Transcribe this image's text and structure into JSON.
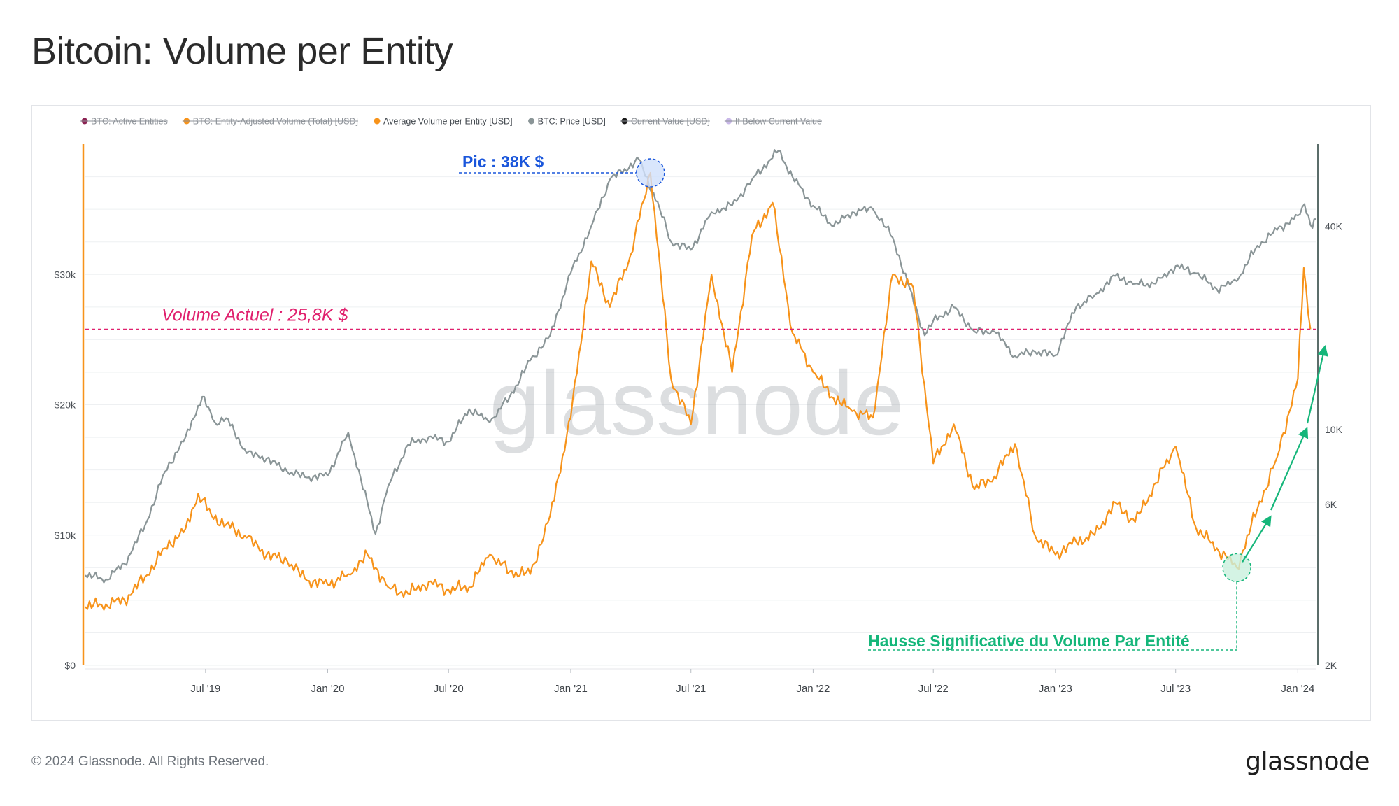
{
  "page": {
    "title": "Bitcoin: Volume per Entity",
    "footer_copyright": "© 2024 Glassnode. All Rights Reserved.",
    "footer_logo": "glassnode",
    "watermark": "glassnode"
  },
  "chart_data": {
    "type": "line",
    "title": "Bitcoin: Volume per Entity",
    "legend_placement": "top-left",
    "legend": [
      {
        "label": "BTC: Active Entities",
        "color": "#8b2252",
        "disabled": true,
        "marker": "dot"
      },
      {
        "label": "BTC: Entity-Adjusted Volume (Total) [USD]",
        "color": "#f7931a",
        "disabled": true,
        "marker": "dot"
      },
      {
        "label": "Average Volume per Entity [USD]",
        "color": "#f7931a",
        "disabled": false,
        "marker": "dot"
      },
      {
        "label": "BTC: Price [USD]",
        "color": "#8a9597",
        "disabled": false,
        "marker": "dot"
      },
      {
        "label": "Current Value [USD]",
        "color": "#1a1a1a",
        "disabled": true,
        "marker": "dot"
      },
      {
        "label": "If Below Current Value",
        "color": "#c9b8e8",
        "disabled": true,
        "marker": "dot"
      }
    ],
    "x_ticks": [
      "Jul '19",
      "Jan '20",
      "Jul '20",
      "Jan '21",
      "Jul '21",
      "Jan '22",
      "Jul '22",
      "Jan '23",
      "Jul '23",
      "Jan '24"
    ],
    "x_range": [
      "2019-01-01",
      "2024-01-28"
    ],
    "y_left": {
      "ticks": [
        "$0",
        "$10k",
        "$20k",
        "$30k"
      ],
      "tick_values": [
        0,
        10000,
        20000,
        30000
      ],
      "range": [
        0,
        40000
      ],
      "scale": "linear"
    },
    "y_right": {
      "ticks": [
        "2K",
        "6K",
        "10K",
        "40K"
      ],
      "tick_values": [
        2000,
        6000,
        10000,
        40000
      ],
      "range": [
        2000,
        70000
      ],
      "scale": "log"
    },
    "grid": true,
    "series": [
      {
        "name": "Average Volume per Entity [USD]",
        "axis": "left",
        "color": "#f7931a",
        "points": [
          [
            "2019-01-01",
            4500
          ],
          [
            "2019-02-01",
            4700
          ],
          [
            "2019-03-01",
            5000
          ],
          [
            "2019-04-01",
            6800
          ],
          [
            "2019-05-01",
            9000
          ],
          [
            "2019-06-01",
            10500
          ],
          [
            "2019-06-20",
            13200
          ],
          [
            "2019-07-10",
            11500
          ],
          [
            "2019-08-01",
            10800
          ],
          [
            "2019-09-01",
            9800
          ],
          [
            "2019-10-01",
            8500
          ],
          [
            "2019-11-01",
            8000
          ],
          [
            "2019-12-01",
            6500
          ],
          [
            "2020-01-01",
            6200
          ],
          [
            "2020-02-01",
            7000
          ],
          [
            "2020-03-01",
            8500
          ],
          [
            "2020-04-01",
            6000
          ],
          [
            "2020-05-01",
            5500
          ],
          [
            "2020-06-01",
            6400
          ],
          [
            "2020-07-01",
            5800
          ],
          [
            "2020-08-01",
            6000
          ],
          [
            "2020-09-01",
            8500
          ],
          [
            "2020-10-01",
            7200
          ],
          [
            "2020-11-01",
            7000
          ],
          [
            "2020-12-01",
            11500
          ],
          [
            "2021-01-01",
            19000
          ],
          [
            "2021-02-01",
            31000
          ],
          [
            "2021-03-01",
            27500
          ],
          [
            "2021-04-01",
            31500
          ],
          [
            "2021-05-01",
            37800
          ],
          [
            "2021-06-01",
            22000
          ],
          [
            "2021-07-01",
            18500
          ],
          [
            "2021-08-01",
            30000
          ],
          [
            "2021-09-01",
            22500
          ],
          [
            "2021-10-01",
            33000
          ],
          [
            "2021-11-01",
            35500
          ],
          [
            "2021-12-01",
            25500
          ],
          [
            "2022-01-01",
            22500
          ],
          [
            "2022-02-01",
            20500
          ],
          [
            "2022-03-01",
            19500
          ],
          [
            "2022-04-01",
            19000
          ],
          [
            "2022-05-01",
            30000
          ],
          [
            "2022-06-01",
            29000
          ],
          [
            "2022-07-01",
            15500
          ],
          [
            "2022-08-01",
            18500
          ],
          [
            "2022-09-01",
            13500
          ],
          [
            "2022-10-01",
            14500
          ],
          [
            "2022-11-01",
            17000
          ],
          [
            "2022-12-01",
            10000
          ],
          [
            "2023-01-01",
            8500
          ],
          [
            "2023-02-01",
            9500
          ],
          [
            "2023-03-01",
            10000
          ],
          [
            "2023-04-01",
            12500
          ],
          [
            "2023-05-01",
            11000
          ],
          [
            "2023-06-01",
            14000
          ],
          [
            "2023-07-01",
            16800
          ],
          [
            "2023-08-01",
            10500
          ],
          [
            "2023-09-01",
            9000
          ],
          [
            "2023-10-01",
            7500
          ],
          [
            "2023-11-01",
            12000
          ],
          [
            "2023-12-01",
            16000
          ],
          [
            "2024-01-01",
            22000
          ],
          [
            "2024-01-10",
            30500
          ],
          [
            "2024-01-20",
            25800
          ]
        ]
      },
      {
        "name": "BTC: Price [USD]",
        "axis": "right",
        "color": "#8a9597",
        "points": [
          [
            "2019-01-01",
            3700
          ],
          [
            "2019-02-01",
            3600
          ],
          [
            "2019-03-01",
            4000
          ],
          [
            "2019-04-01",
            5200
          ],
          [
            "2019-05-01",
            7500
          ],
          [
            "2019-06-01",
            9500
          ],
          [
            "2019-06-26",
            12500
          ],
          [
            "2019-07-15",
            10500
          ],
          [
            "2019-08-01",
            10800
          ],
          [
            "2019-09-01",
            8500
          ],
          [
            "2019-10-01",
            8200
          ],
          [
            "2019-11-01",
            7500
          ],
          [
            "2019-12-01",
            7200
          ],
          [
            "2020-01-01",
            7300
          ],
          [
            "2020-02-01",
            9800
          ],
          [
            "2020-03-13",
            4900
          ],
          [
            "2020-04-01",
            6800
          ],
          [
            "2020-05-01",
            9000
          ],
          [
            "2020-06-01",
            9500
          ],
          [
            "2020-07-01",
            9200
          ],
          [
            "2020-08-01",
            11500
          ],
          [
            "2020-09-01",
            10500
          ],
          [
            "2020-10-01",
            12500
          ],
          [
            "2020-11-01",
            16000
          ],
          [
            "2020-12-01",
            19000
          ],
          [
            "2021-01-01",
            29000
          ],
          [
            "2021-02-01",
            40000
          ],
          [
            "2021-03-01",
            55000
          ],
          [
            "2021-04-14",
            63000
          ],
          [
            "2021-05-15",
            45000
          ],
          [
            "2021-06-01",
            36000
          ],
          [
            "2021-07-01",
            34000
          ],
          [
            "2021-08-01",
            44000
          ],
          [
            "2021-09-01",
            46000
          ],
          [
            "2021-10-01",
            55000
          ],
          [
            "2021-11-10",
            67000
          ],
          [
            "2021-12-01",
            56000
          ],
          [
            "2022-01-01",
            46000
          ],
          [
            "2022-02-01",
            40000
          ],
          [
            "2022-03-01",
            44000
          ],
          [
            "2022-04-01",
            45000
          ],
          [
            "2022-05-01",
            37000
          ],
          [
            "2022-06-18",
            19000
          ],
          [
            "2022-07-01",
            21000
          ],
          [
            "2022-08-01",
            23000
          ],
          [
            "2022-09-01",
            19500
          ],
          [
            "2022-10-01",
            19500
          ],
          [
            "2022-11-01",
            16500
          ],
          [
            "2022-12-01",
            17000
          ],
          [
            "2023-01-01",
            16600
          ],
          [
            "2023-02-01",
            23000
          ],
          [
            "2023-03-01",
            25000
          ],
          [
            "2023-04-01",
            28500
          ],
          [
            "2023-05-01",
            27000
          ],
          [
            "2023-06-01",
            27000
          ],
          [
            "2023-07-01",
            30500
          ],
          [
            "2023-08-01",
            29000
          ],
          [
            "2023-09-01",
            26000
          ],
          [
            "2023-10-01",
            27500
          ],
          [
            "2023-11-01",
            35000
          ],
          [
            "2023-12-01",
            39000
          ],
          [
            "2024-01-01",
            43000
          ],
          [
            "2024-01-11",
            46500
          ],
          [
            "2024-01-23",
            39500
          ],
          [
            "2024-01-28",
            42000
          ]
        ]
      }
    ],
    "annotations": {
      "peak_label": "Pic : 38K $",
      "peak_point": [
        "2021-05-01",
        37800
      ],
      "peak_color": "#1a56db",
      "current_label": "Volume Actuel : 25,8K $",
      "current_value": 25800,
      "current_color": "#e0216e",
      "rise_label": "Hausse Significative du Volume Par Entité",
      "rise_point": [
        "2023-10-01",
        7500
      ],
      "rise_color": "#15b67a"
    }
  }
}
